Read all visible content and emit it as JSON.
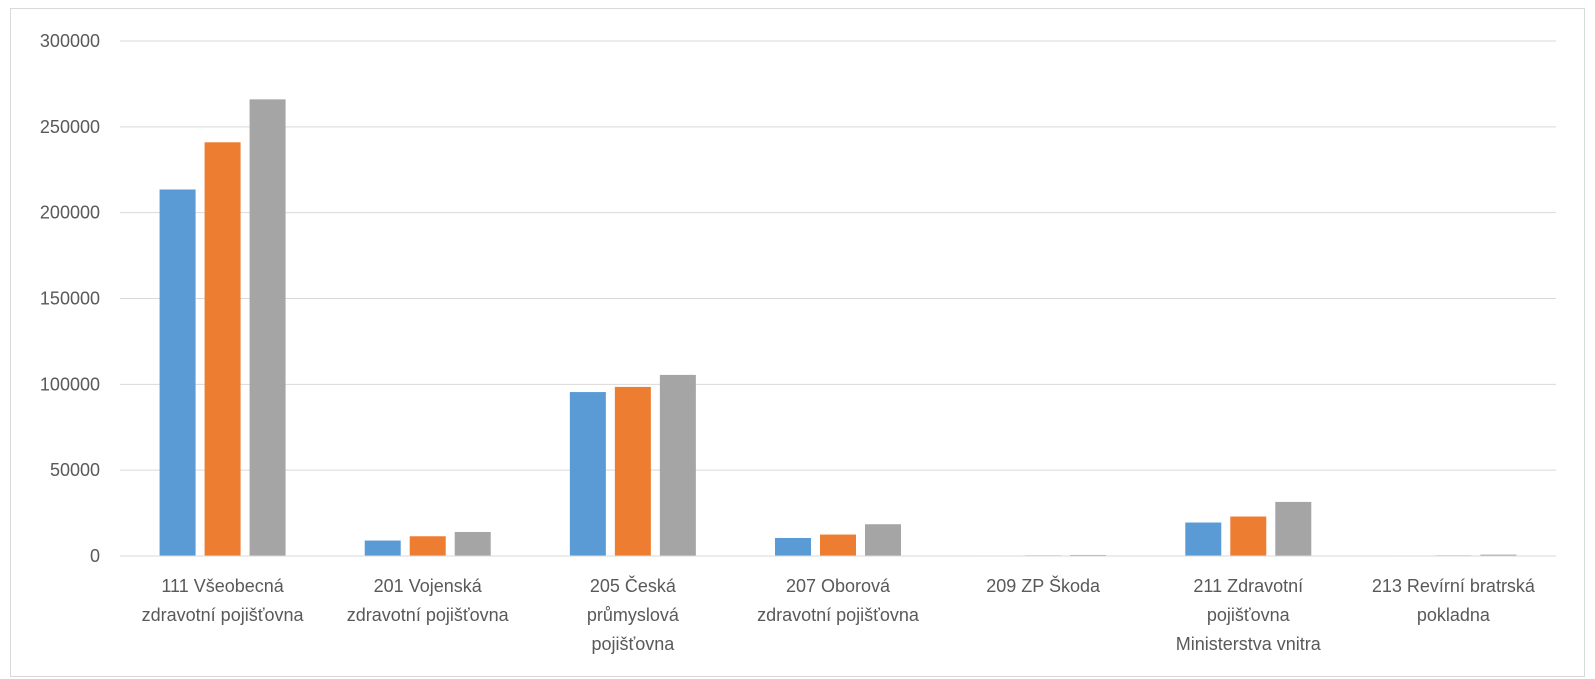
{
  "chart_data": {
    "type": "bar",
    "title": "",
    "xlabel": "",
    "ylabel": "",
    "ylim": [
      0,
      300000
    ],
    "yticks": [
      0,
      50000,
      100000,
      150000,
      200000,
      250000,
      300000
    ],
    "ytick_labels": [
      "0",
      "50000",
      "100000",
      "150000",
      "200000",
      "250000",
      "300000"
    ],
    "grid": true,
    "legend": "none",
    "categories": [
      [
        "111 Všeobecná",
        "zdravotní pojišťovna"
      ],
      [
        "201 Vojenská",
        "zdravotní pojišťovna"
      ],
      [
        "205 Česká",
        "průmyslová",
        "pojišťovna"
      ],
      [
        "207 Oborová",
        "zdravotní pojišťovna"
      ],
      [
        "209 ZP Škoda"
      ],
      [
        "211 Zdravotní",
        "pojišťovna",
        "Ministerstva vnitra"
      ],
      [
        "213 Revírní  bratrská",
        "pokladna"
      ]
    ],
    "series": [
      {
        "color": "#5b9bd5",
        "values": [
          213500,
          9000,
          95500,
          10500,
          300,
          19500,
          300
        ]
      },
      {
        "color": "#ed7d31",
        "values": [
          241000,
          11500,
          98500,
          12500,
          400,
          23000,
          400
        ]
      },
      {
        "color": "#a5a5a5",
        "values": [
          266000,
          14000,
          105500,
          18500,
          600,
          31500,
          800
        ]
      }
    ]
  }
}
